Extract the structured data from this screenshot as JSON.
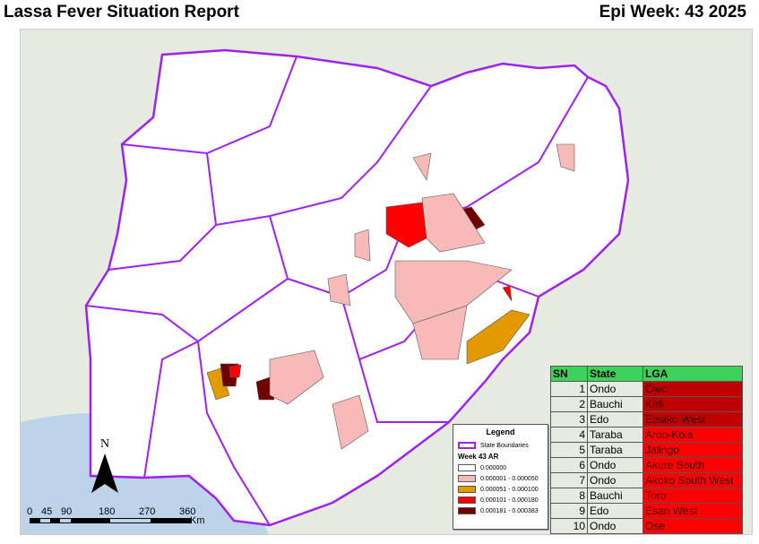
{
  "header": {
    "title": "Lassa Fever Situation Report",
    "epi_week": "Epi Week: 43 2025"
  },
  "legend": {
    "title": "Legend",
    "boundary_label": "State Boundaries",
    "subtitle": "Week 43 AR",
    "classes": [
      {
        "label": "0.000000",
        "color": "#ffffff"
      },
      {
        "label": "0.000001 - 0.000050",
        "color": "#f8b9b9"
      },
      {
        "label": "0.000051 - 0.000100",
        "color": "#e39a00"
      },
      {
        "label": "0.000101 - 0.000180",
        "color": "#ff0000"
      },
      {
        "label": "0.000181 - 0.000383",
        "color": "#730000"
      }
    ]
  },
  "north_label": "N",
  "scale": {
    "ticks": [
      "0",
      "45",
      "90",
      "180",
      "270",
      "360"
    ],
    "unit": "Km"
  },
  "table": {
    "headers": [
      "SN",
      "State",
      "LGA"
    ],
    "rows": [
      {
        "sn": "1",
        "state": "Ondo",
        "lga": "Owo",
        "color": "#c00000"
      },
      {
        "sn": "2",
        "state": "Bauchi",
        "lga": "Kirfi",
        "color": "#c00000"
      },
      {
        "sn": "3",
        "state": "Edo",
        "lga": "Etsako West",
        "color": "#c00000"
      },
      {
        "sn": "4",
        "state": "Taraba",
        "lga": "Ardo-Kola",
        "color": "#ff0000"
      },
      {
        "sn": "5",
        "state": "Taraba",
        "lga": "Jalingo",
        "color": "#ff0000"
      },
      {
        "sn": "6",
        "state": "Ondo",
        "lga": "Akure South",
        "color": "#ff0000"
      },
      {
        "sn": "7",
        "state": "Ondo",
        "lga": "Akoko South West",
        "color": "#ff0000"
      },
      {
        "sn": "8",
        "state": "Bauchi",
        "lga": "Toro",
        "color": "#ff0000"
      },
      {
        "sn": "9",
        "state": "Edo",
        "lga": "Esan West",
        "color": "#ff0000"
      },
      {
        "sn": "10",
        "state": "Ondo",
        "lga": "Ose",
        "color": "#ff0000"
      }
    ]
  }
}
